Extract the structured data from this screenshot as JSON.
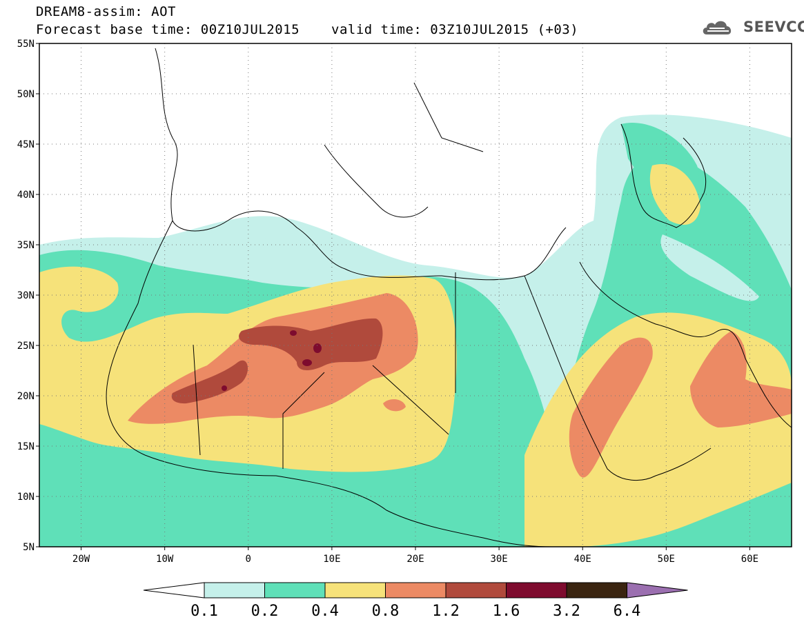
{
  "title": {
    "line1": "DREAM8-assim: AOT",
    "line2": "Forecast base time: 00Z10JUL2015",
    "valid": "valid time: 03Z10JUL2015 (+03)"
  },
  "logo": {
    "text": "SEEVCCC",
    "icon": "cloud-icon"
  },
  "map": {
    "lon_range": [
      -25,
      65
    ],
    "lat_range": [
      5,
      55
    ],
    "lat_ticks": [
      {
        "v": 55,
        "label": "55N"
      },
      {
        "v": 50,
        "label": "50N"
      },
      {
        "v": 45,
        "label": "45N"
      },
      {
        "v": 40,
        "label": "40N"
      },
      {
        "v": 35,
        "label": "35N"
      },
      {
        "v": 30,
        "label": "30N"
      },
      {
        "v": 25,
        "label": "25N"
      },
      {
        "v": 20,
        "label": "20N"
      },
      {
        "v": 15,
        "label": "15N"
      },
      {
        "v": 10,
        "label": "10N"
      },
      {
        "v": 5,
        "label": "5N"
      }
    ],
    "lon_ticks": [
      {
        "v": -20,
        "label": "20W"
      },
      {
        "v": -10,
        "label": "10W"
      },
      {
        "v": 0,
        "label": "0"
      },
      {
        "v": 10,
        "label": "10E"
      },
      {
        "v": 20,
        "label": "20E"
      },
      {
        "v": 30,
        "label": "30E"
      },
      {
        "v": 40,
        "label": "40E"
      },
      {
        "v": 50,
        "label": "50E"
      },
      {
        "v": 60,
        "label": "60E"
      }
    ],
    "grid": "dotted"
  },
  "colorbar": {
    "levels": [
      "0.1",
      "0.2",
      "0.4",
      "0.8",
      "1.2",
      "1.6",
      "3.2",
      "6.4"
    ],
    "colors": [
      "#ffffff",
      "#c5f0ea",
      "#5fe0b8",
      "#f6e27a",
      "#ec8a64",
      "#b04a3c",
      "#7e0b2e",
      "#3a2410",
      "#9b6fb0"
    ]
  }
}
